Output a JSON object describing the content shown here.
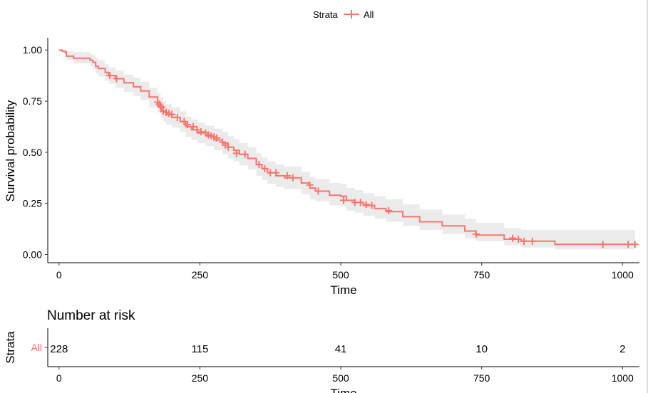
{
  "legend": {
    "title": "Strata",
    "label": "All",
    "color": "#F8766D"
  },
  "chart_data": [
    {
      "type": "line",
      "title": "",
      "xlabel": "Time",
      "ylabel": "Survival probability",
      "xlim": [
        -20,
        1030
      ],
      "ylim": [
        -0.04,
        1.06
      ],
      "xticks": [
        0,
        250,
        500,
        750,
        1000
      ],
      "yticks": [
        0.0,
        0.25,
        0.5,
        0.75,
        1.0
      ],
      "ytick_labels": [
        "0.00",
        "0.25",
        "0.50",
        "0.75",
        "1.00"
      ],
      "grid": false,
      "legend_position": "top",
      "series": [
        {
          "name": "All",
          "color": "#F8766D",
          "ci_color": "#EBEBEB",
          "step_x": [
            0,
            5,
            11,
            13,
            26,
            55,
            60,
            65,
            70,
            82,
            88,
            100,
            115,
            132,
            145,
            160,
            175,
            180,
            185,
            190,
            200,
            215,
            225,
            235,
            245,
            260,
            275,
            290,
            300,
            310,
            320,
            335,
            350,
            360,
            370,
            385,
            400,
            430,
            445,
            455,
            480,
            500,
            510,
            525,
            540,
            560,
            580,
            610,
            640,
            680,
            720,
            740,
            790,
            820,
            880,
            1022
          ],
          "step_y": [
            1.0,
            0.995,
            0.99,
            0.97,
            0.96,
            0.95,
            0.94,
            0.92,
            0.91,
            0.89,
            0.875,
            0.86,
            0.84,
            0.82,
            0.8,
            0.77,
            0.745,
            0.72,
            0.7,
            0.685,
            0.67,
            0.65,
            0.625,
            0.61,
            0.595,
            0.58,
            0.56,
            0.545,
            0.525,
            0.51,
            0.49,
            0.47,
            0.44,
            0.42,
            0.4,
            0.385,
            0.375,
            0.35,
            0.325,
            0.31,
            0.29,
            0.285,
            0.265,
            0.255,
            0.24,
            0.225,
            0.21,
            0.185,
            0.16,
            0.14,
            0.115,
            0.095,
            0.075,
            0.065,
            0.05,
            0.05
          ],
          "ci_upper": [
            1.0,
            1.0,
            1.0,
            0.995,
            0.99,
            0.98,
            0.975,
            0.96,
            0.95,
            0.93,
            0.915,
            0.9,
            0.88,
            0.865,
            0.845,
            0.815,
            0.79,
            0.77,
            0.75,
            0.735,
            0.72,
            0.7,
            0.675,
            0.66,
            0.645,
            0.63,
            0.615,
            0.6,
            0.58,
            0.565,
            0.545,
            0.525,
            0.495,
            0.475,
            0.455,
            0.44,
            0.43,
            0.405,
            0.38,
            0.37,
            0.35,
            0.345,
            0.325,
            0.315,
            0.3,
            0.285,
            0.27,
            0.245,
            0.22,
            0.195,
            0.175,
            0.155,
            0.13,
            0.12,
            0.12,
            0.12
          ],
          "ci_lower": [
            1.0,
            0.985,
            0.975,
            0.95,
            0.935,
            0.92,
            0.905,
            0.885,
            0.87,
            0.85,
            0.835,
            0.815,
            0.795,
            0.775,
            0.755,
            0.72,
            0.695,
            0.67,
            0.65,
            0.635,
            0.62,
            0.6,
            0.575,
            0.56,
            0.545,
            0.53,
            0.51,
            0.49,
            0.47,
            0.455,
            0.435,
            0.415,
            0.385,
            0.365,
            0.345,
            0.33,
            0.32,
            0.295,
            0.27,
            0.26,
            0.24,
            0.235,
            0.215,
            0.205,
            0.19,
            0.175,
            0.16,
            0.14,
            0.12,
            0.1,
            0.08,
            0.065,
            0.045,
            0.035,
            0.025,
            0.025
          ],
          "censor_x": [
            90,
            102,
            175,
            178,
            180,
            182,
            185,
            190,
            195,
            200,
            210,
            222,
            228,
            238,
            245,
            252,
            260,
            265,
            270,
            275,
            280,
            290,
            295,
            300,
            315,
            330,
            355,
            365,
            375,
            385,
            405,
            415,
            445,
            460,
            505,
            525,
            535,
            545,
            555,
            585,
            740,
            805,
            815,
            825,
            840,
            965,
            1010,
            1022
          ],
          "censor_y": [
            0.875,
            0.86,
            0.745,
            0.735,
            0.725,
            0.72,
            0.7,
            0.695,
            0.69,
            0.685,
            0.67,
            0.65,
            0.635,
            0.625,
            0.61,
            0.6,
            0.595,
            0.585,
            0.58,
            0.575,
            0.57,
            0.55,
            0.535,
            0.525,
            0.495,
            0.49,
            0.44,
            0.42,
            0.4,
            0.4,
            0.385,
            0.375,
            0.34,
            0.31,
            0.265,
            0.255,
            0.255,
            0.245,
            0.24,
            0.215,
            0.1,
            0.08,
            0.075,
            0.065,
            0.065,
            0.05,
            0.05,
            0.05
          ]
        }
      ]
    },
    {
      "type": "table",
      "title": "Number at risk",
      "xlabel": "Time",
      "ylabel": "Strata",
      "xlim": [
        -20,
        1030
      ],
      "xticks": [
        0,
        250,
        500,
        750,
        1000
      ],
      "row_label": "All",
      "times": [
        0,
        250,
        500,
        750,
        1000
      ],
      "values": [
        228,
        115,
        41,
        10,
        2
      ]
    }
  ]
}
